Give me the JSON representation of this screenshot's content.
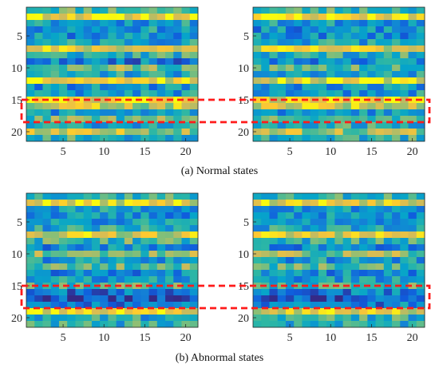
{
  "captions": {
    "top": "(a) Normal states",
    "bottom": "(b) Abnormal states"
  },
  "colors": {
    "highlight_box": "#ff1a1a",
    "colormap": [
      "#352a87",
      "#0f5cdd",
      "#1481d6",
      "#06a4ca",
      "#2eb7a4",
      "#87bf77",
      "#d1bb59",
      "#fec832",
      "#f9fb0e"
    ]
  },
  "chart_data": [
    {
      "type": "heatmap",
      "title": "",
      "xlabel": "",
      "ylabel": "",
      "xlim": [
        0.5,
        21.5
      ],
      "ylim": [
        0.5,
        21.5
      ],
      "x_ticks": [
        "5",
        "10",
        "15",
        "20"
      ],
      "y_ticks": [
        "5",
        "10",
        "15",
        "20"
      ],
      "highlight_rows": [
        15,
        18
      ],
      "row_profile": [
        0.55,
        0.9,
        0.35,
        0.35,
        0.3,
        0.4,
        0.8,
        0.45,
        0.25,
        0.6,
        0.4,
        0.85,
        0.3,
        0.35,
        0.9,
        0.75,
        0.35,
        0.55,
        0.4,
        0.7,
        0.45
      ],
      "seed": 11
    },
    {
      "type": "heatmap",
      "title": "",
      "xlabel": "",
      "ylabel": "",
      "xlim": [
        0.5,
        21.5
      ],
      "ylim": [
        0.5,
        21.5
      ],
      "x_ticks": [
        "5",
        "10",
        "15",
        "20"
      ],
      "y_ticks": [
        "5",
        "10",
        "15",
        "20"
      ],
      "highlight_rows": [
        15,
        18
      ],
      "row_profile": [
        0.5,
        0.9,
        0.35,
        0.3,
        0.3,
        0.4,
        0.8,
        0.45,
        0.3,
        0.55,
        0.4,
        0.85,
        0.35,
        0.35,
        0.85,
        0.8,
        0.35,
        0.5,
        0.45,
        0.7,
        0.45
      ],
      "seed": 23
    },
    {
      "type": "heatmap",
      "title": "",
      "xlabel": "",
      "ylabel": "",
      "xlim": [
        0.5,
        21.5
      ],
      "ylim": [
        0.5,
        21.5
      ],
      "x_ticks": [
        "5",
        "10",
        "15",
        "20"
      ],
      "y_ticks": [
        "5",
        "10",
        "15",
        "20"
      ],
      "highlight_rows": [
        15,
        18
      ],
      "row_profile": [
        0.5,
        0.85,
        0.35,
        0.3,
        0.35,
        0.4,
        0.8,
        0.5,
        0.3,
        0.6,
        0.35,
        0.55,
        0.3,
        0.35,
        0.5,
        0.2,
        0.1,
        0.2,
        0.85,
        0.4,
        0.45
      ],
      "seed": 37
    },
    {
      "type": "heatmap",
      "title": "",
      "xlabel": "",
      "ylabel": "",
      "xlim": [
        0.5,
        21.5
      ],
      "ylim": [
        0.5,
        21.5
      ],
      "x_ticks": [
        "5",
        "10",
        "15",
        "20"
      ],
      "y_ticks": [
        "5",
        "10",
        "15",
        "20"
      ],
      "highlight_rows": [
        15,
        18
      ],
      "row_profile": [
        0.5,
        0.85,
        0.35,
        0.3,
        0.35,
        0.4,
        0.8,
        0.45,
        0.3,
        0.6,
        0.35,
        0.55,
        0.3,
        0.35,
        0.5,
        0.25,
        0.15,
        0.25,
        0.8,
        0.45,
        0.4
      ],
      "seed": 53
    }
  ]
}
